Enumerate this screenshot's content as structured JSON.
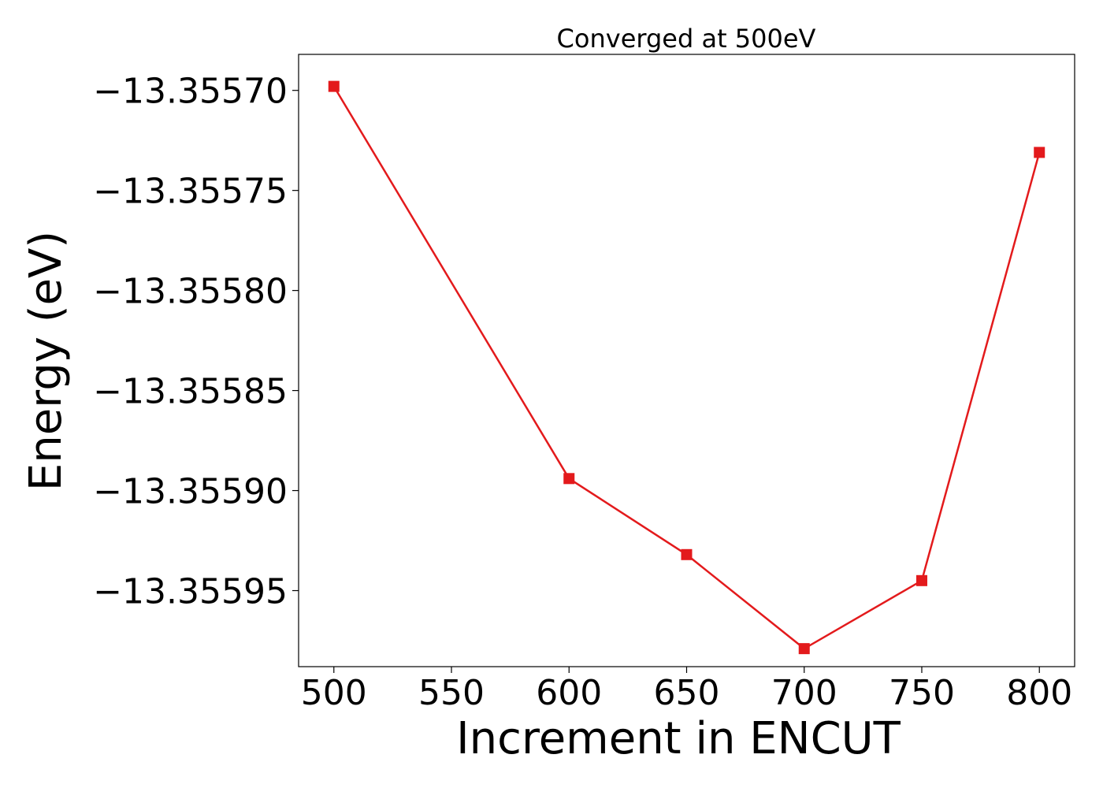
{
  "chart_data": {
    "type": "line",
    "title": "Converged at 500eV",
    "xlabel": "Increment in ENCUT",
    "ylabel": "Energy (eV)",
    "xlim": [
      485,
      815
    ],
    "ylim": [
      -13.355988,
      -13.355682
    ],
    "x_ticks": [
      500,
      550,
      600,
      650,
      700,
      750,
      800
    ],
    "x_tick_labels": [
      "500",
      "550",
      "600",
      "650",
      "700",
      "750",
      "800"
    ],
    "y_ticks": [
      -13.3557,
      -13.35575,
      -13.3558,
      -13.35585,
      -13.3559,
      -13.35595
    ],
    "y_tick_labels": [
      "−13.35570",
      "−13.35575",
      "−13.35580",
      "−13.35585",
      "−13.35590",
      "−13.35595"
    ],
    "grid": false,
    "series": [
      {
        "color": "#e31a1c",
        "marker": "square",
        "x": [
          500,
          600,
          650,
          700,
          750,
          800
        ],
        "y": [
          -13.355698,
          -13.355894,
          -13.355932,
          -13.355979,
          -13.355945,
          -13.355731
        ]
      }
    ]
  }
}
